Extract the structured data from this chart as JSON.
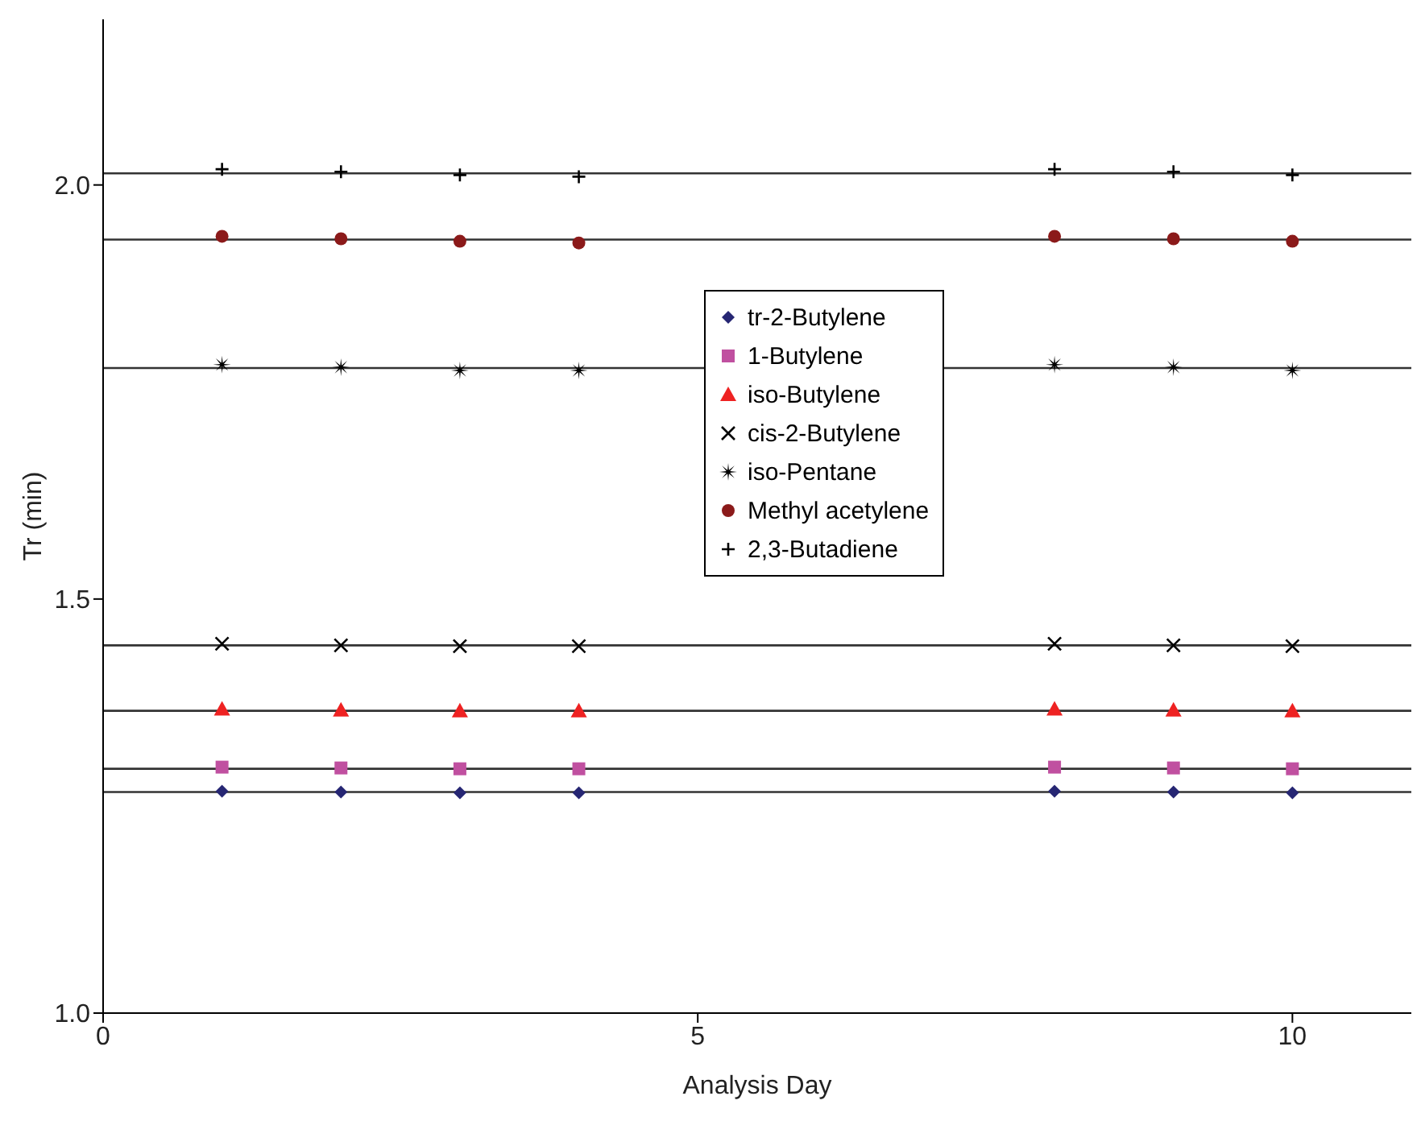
{
  "chart_data": {
    "type": "scatter",
    "xlabel": "Analysis Day",
    "ylabel": "Tr (min)",
    "x": [
      1,
      2,
      3,
      4,
      8,
      9,
      10
    ],
    "series": [
      {
        "name": "tr-2-Butylene",
        "color": "#262673",
        "marker": "diamond",
        "values": [
          1.268,
          1.267,
          1.266,
          1.266,
          1.268,
          1.267,
          1.266
        ]
      },
      {
        "name": "1-Butylene",
        "color": "#c050a0",
        "marker": "square",
        "values": [
          1.297,
          1.296,
          1.295,
          1.295,
          1.297,
          1.296,
          1.295
        ]
      },
      {
        "name": "iso-Butylene",
        "color": "#ee2222",
        "marker": "triangle",
        "values": [
          1.367,
          1.366,
          1.365,
          1.365,
          1.367,
          1.366,
          1.365
        ]
      },
      {
        "name": "cis-2-Butylene",
        "color": "#000000",
        "marker": "cross",
        "values": [
          1.446,
          1.444,
          1.443,
          1.443,
          1.446,
          1.444,
          1.443
        ]
      },
      {
        "name": "iso-Pentane",
        "color": "#000000",
        "marker": "star",
        "values": [
          1.783,
          1.78,
          1.776,
          1.776,
          1.783,
          1.78,
          1.776
        ]
      },
      {
        "name": "Methyl acetylene",
        "color": "#8b1a1a",
        "marker": "circle",
        "values": [
          1.938,
          1.935,
          1.932,
          1.93,
          1.938,
          1.935,
          1.932
        ]
      },
      {
        "name": "2,3-Butadiene",
        "color": "#000000",
        "marker": "plus",
        "values": [
          2.019,
          2.016,
          2.012,
          2.01,
          2.019,
          2.016,
          2.012
        ]
      }
    ],
    "ref_lines": [
      {
        "axis": "y",
        "value": 1.267,
        "color": "#333333"
      },
      {
        "axis": "y",
        "value": 1.295,
        "color": "#333333"
      },
      {
        "axis": "y",
        "value": 1.365,
        "color": "#333333"
      },
      {
        "axis": "y",
        "value": 1.444,
        "color": "#333333"
      },
      {
        "axis": "y",
        "value": 1.779,
        "color": "#333333"
      },
      {
        "axis": "y",
        "value": 1.934,
        "color": "#333333"
      },
      {
        "axis": "y",
        "value": 2.014,
        "color": "#333333"
      }
    ],
    "xlim": [
      0,
      11
    ],
    "xticks": [
      0,
      5,
      10
    ],
    "ylim": [
      1.0,
      2.2
    ],
    "yticks": [
      {
        "value": 1.0,
        "label": "1.0"
      },
      {
        "value": 1.5,
        "label": "1.5"
      },
      {
        "value": 2.0,
        "label": "2.0"
      }
    ],
    "grid": false,
    "legend": "top"
  }
}
